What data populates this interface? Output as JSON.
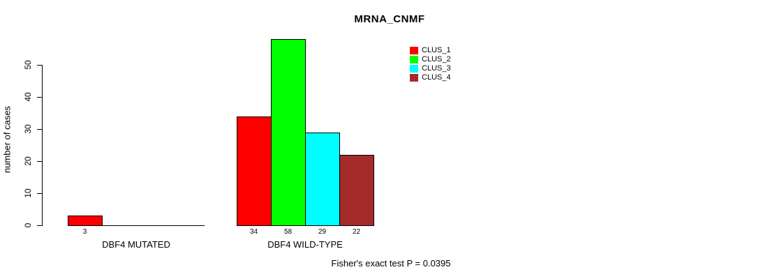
{
  "title": "MRNA_CNMF",
  "y_axis": {
    "label": "number of cases",
    "ticks": [
      0,
      10,
      20,
      30,
      40,
      50
    ]
  },
  "legend": {
    "items": [
      {
        "label": "CLUS_1",
        "color": "#FF0000"
      },
      {
        "label": "CLUS_2",
        "color": "#00FF00"
      },
      {
        "label": "CLUS_3",
        "color": "#00FFFF"
      },
      {
        "label": "CLUS_4",
        "color": "#A52A2A"
      }
    ]
  },
  "footer": "Fisher's exact test P = 0.0395",
  "chart_data": {
    "type": "bar",
    "title": "MRNA_CNMF",
    "xlabel": "",
    "ylabel": "number of cases",
    "categories": [
      "DBF4 MUTATED",
      "DBF4 WILD-TYPE"
    ],
    "series": [
      {
        "name": "CLUS_1",
        "color": "#FF0000",
        "values": [
          3,
          34
        ]
      },
      {
        "name": "CLUS_2",
        "color": "#00FF00",
        "values": [
          0,
          58
        ]
      },
      {
        "name": "CLUS_3",
        "color": "#00FFFF",
        "values": [
          0,
          29
        ]
      },
      {
        "name": "CLUS_4",
        "color": "#A52A2A",
        "values": [
          0,
          22
        ]
      }
    ],
    "bar_value_labels": {
      "DBF4 MUTATED": [
        3
      ],
      "DBF4 WILD-TYPE": [
        34,
        58,
        29,
        22
      ]
    },
    "yticks": [
      0,
      10,
      20,
      30,
      40,
      50
    ],
    "ylim": [
      0,
      58
    ],
    "grid": false,
    "legend_position": "top-right",
    "annotation": "Fisher's exact test P = 0.0395"
  }
}
